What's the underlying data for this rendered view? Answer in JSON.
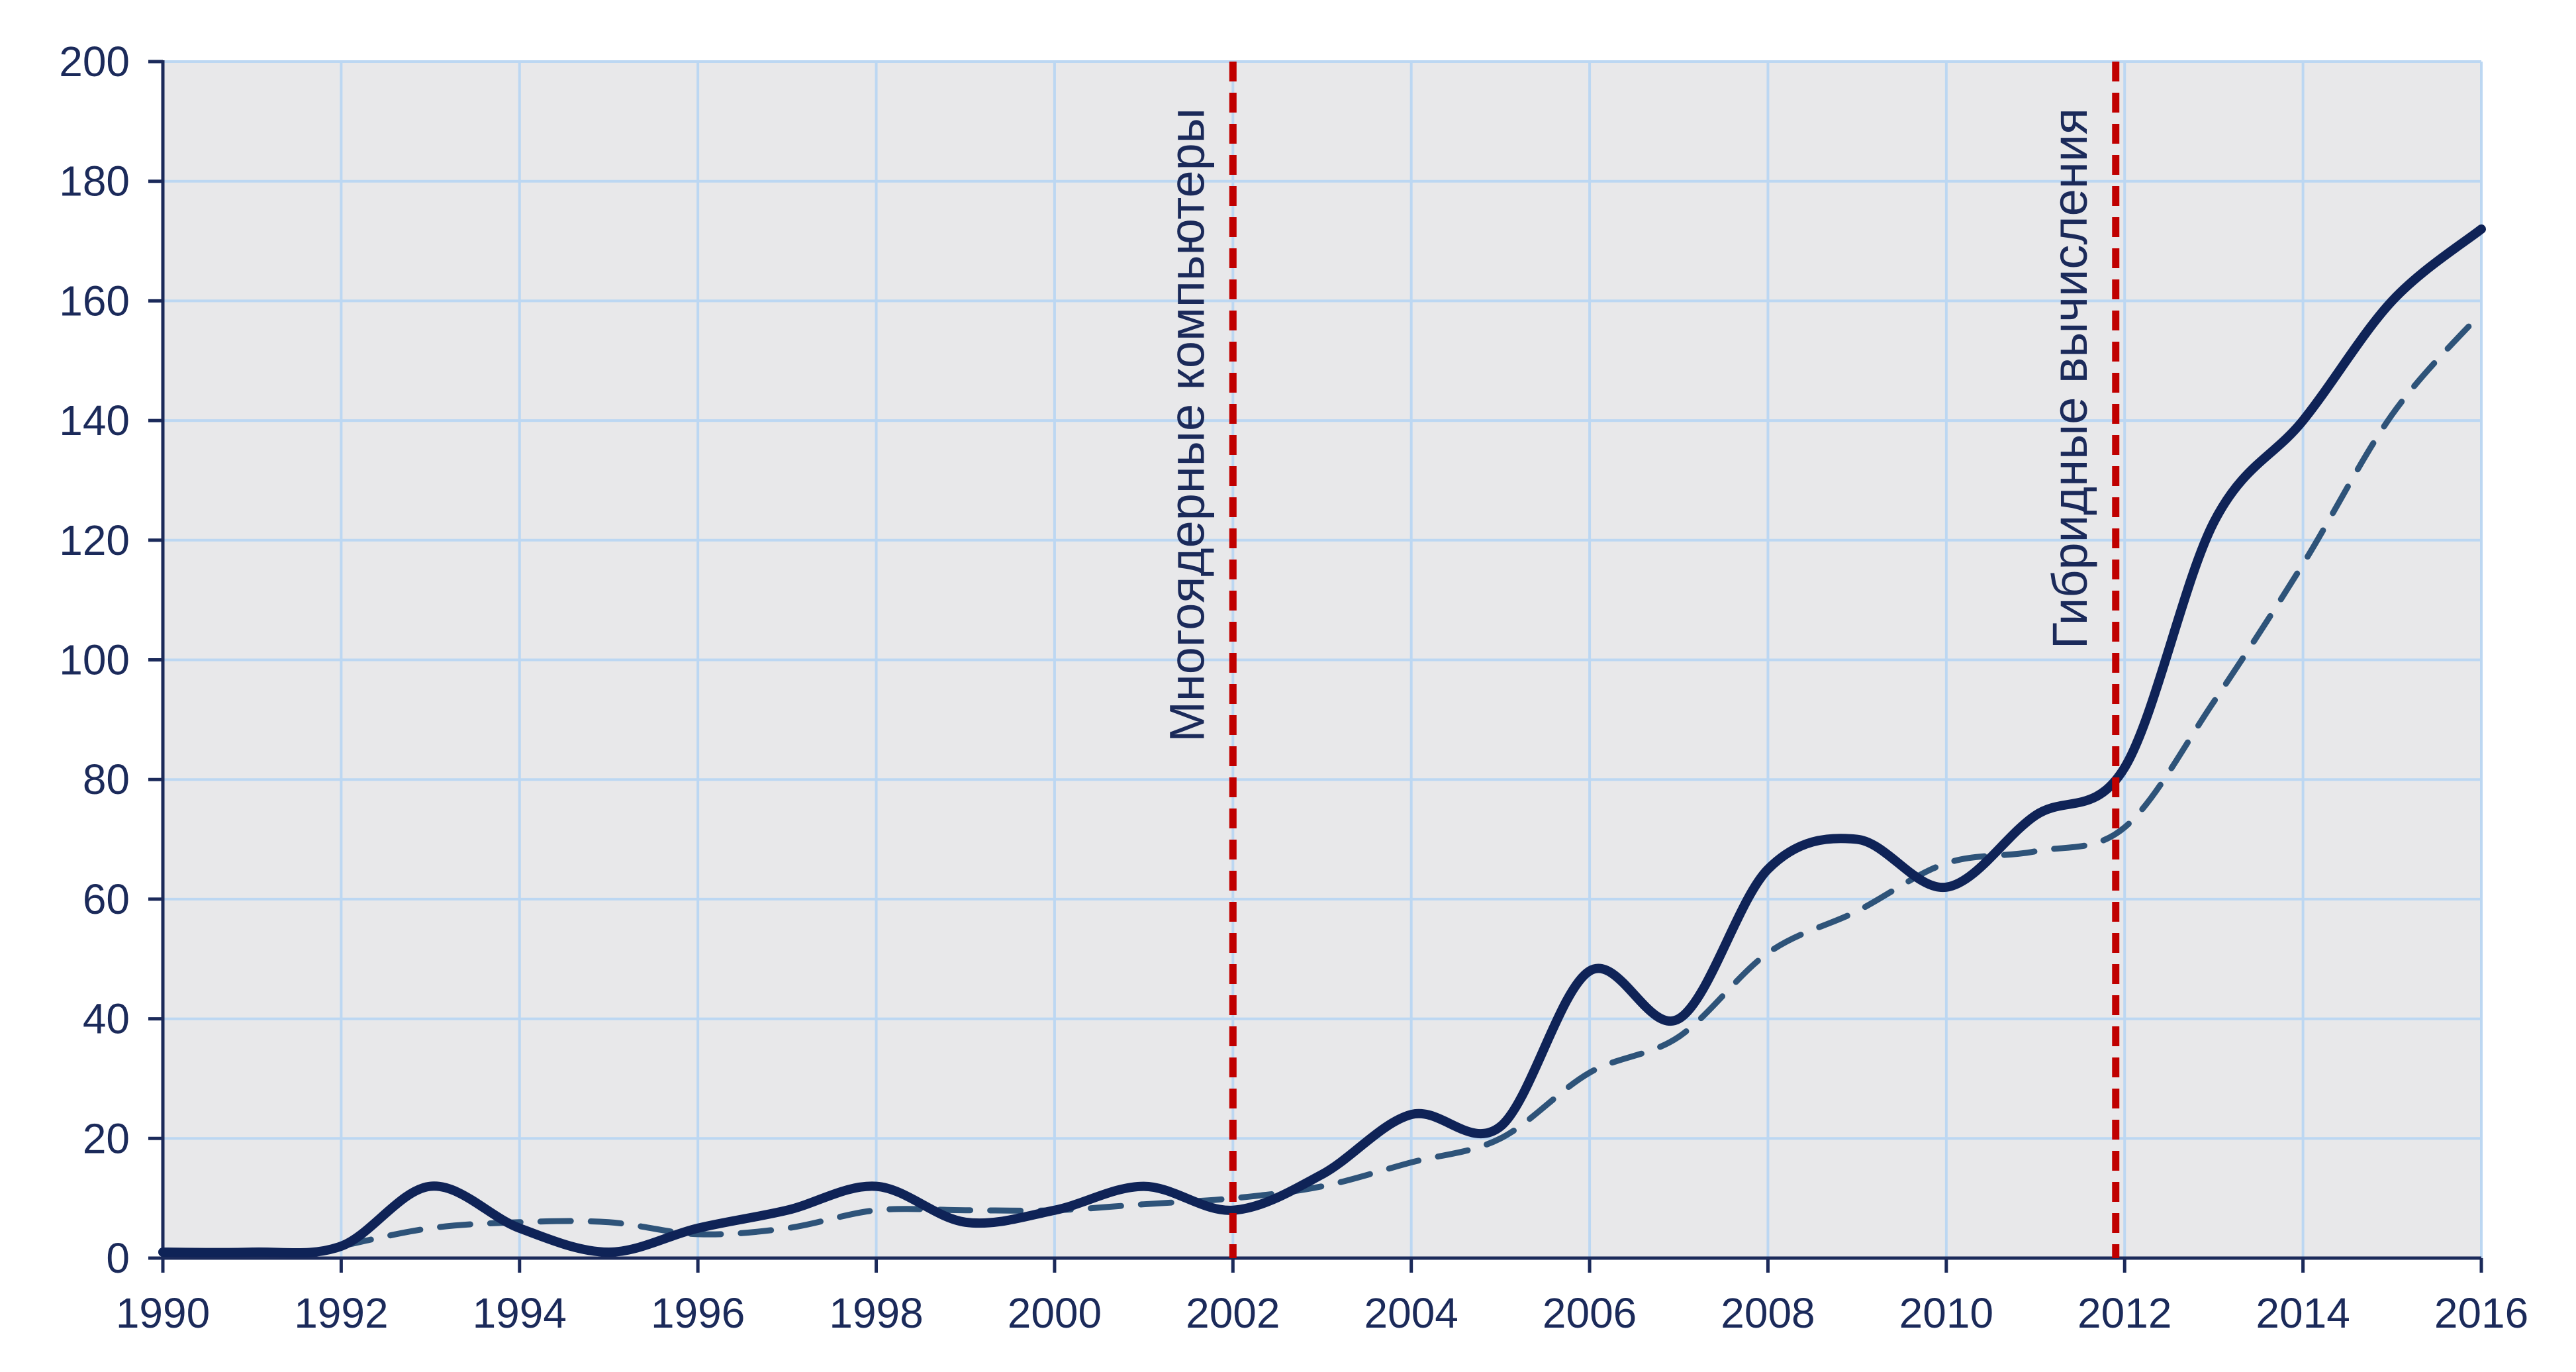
{
  "chart_data": {
    "type": "line",
    "title": "",
    "xlabel": "",
    "ylabel": "",
    "xlim": [
      1990,
      2016
    ],
    "ylim": [
      0,
      200
    ],
    "x_ticks": [
      "1990",
      "1992",
      "1994",
      "1996",
      "1998",
      "2000",
      "2002",
      "2004",
      "2006",
      "2008",
      "2010",
      "2012",
      "2014",
      "2016"
    ],
    "y_ticks": [
      "0",
      "20",
      "40",
      "60",
      "80",
      "100",
      "120",
      "140",
      "160",
      "180",
      "200"
    ],
    "grid": true,
    "legend": "none",
    "series": [
      {
        "style": "solid",
        "color": "#0f2357",
        "x": [
          1990,
          1991,
          1992,
          1993,
          1994,
          1995,
          1996,
          1997,
          1998,
          1999,
          2000,
          2001,
          2002,
          2003,
          2004,
          2005,
          2006,
          2007,
          2008,
          2009,
          2010,
          2011,
          2012,
          2013,
          2014,
          2015,
          2016
        ],
        "values": [
          1,
          1,
          2,
          12,
          5,
          1,
          5,
          8,
          12,
          6,
          8,
          12,
          8,
          14,
          24,
          22,
          48,
          40,
          65,
          70,
          62,
          74,
          82,
          123,
          140,
          160,
          172
        ]
      },
      {
        "style": "dashed",
        "color": "#2e5379",
        "x": [
          1992,
          1993,
          1994,
          1995,
          1996,
          1997,
          1998,
          1999,
          2000,
          2001,
          2002,
          2003,
          2004,
          2005,
          2006,
          2007,
          2008,
          2009,
          2010,
          2011,
          2012,
          2013,
          2014,
          2015,
          2016
        ],
        "values": [
          2,
          5,
          6,
          6,
          4,
          5,
          8,
          8,
          8,
          9,
          10,
          12,
          16,
          20,
          31,
          37,
          51,
          58,
          66,
          68,
          72,
          93,
          116,
          141,
          158
        ]
      }
    ],
    "annotations": [
      {
        "x": 2002,
        "label": "Многоядерные компьютеры",
        "color": "#c00000"
      },
      {
        "x": 2011.9,
        "label": "Гибридные вычисления",
        "color": "#c00000"
      }
    ]
  }
}
